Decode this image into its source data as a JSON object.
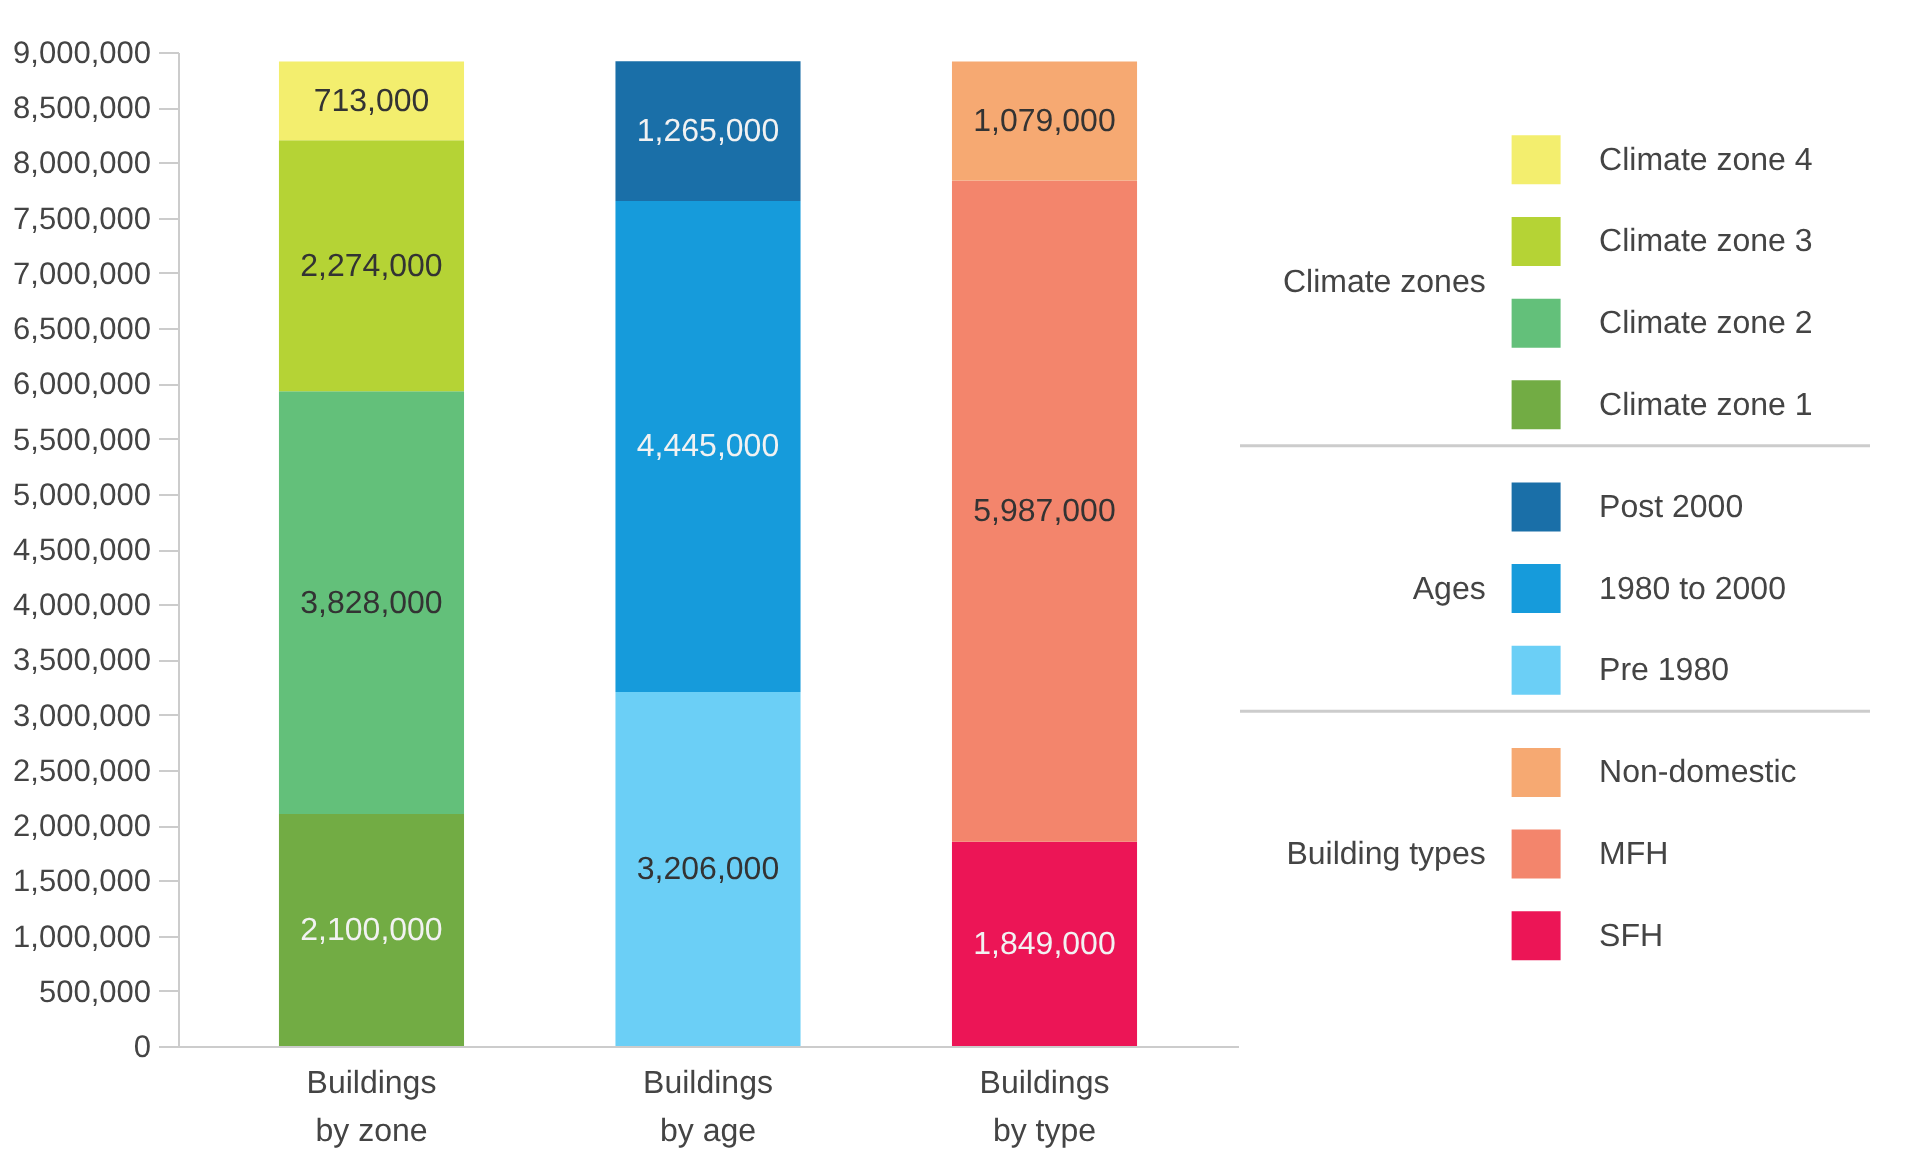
{
  "chart_data": {
    "type": "bar",
    "stacked": true,
    "data_labels": true,
    "grid": false,
    "legend": "right",
    "categories": [
      "Buildings by zone",
      "Buildings by age",
      "Buildings by type"
    ],
    "annotations": [
      "Climate zones",
      "Ages",
      "Building types"
    ],
    "ylim": [
      0,
      9000000
    ],
    "yticks": [
      {
        "value": 0,
        "label": "0"
      },
      {
        "value": 500000,
        "label": "500,000"
      },
      {
        "value": 1000000,
        "label": "1,000,000"
      },
      {
        "value": 1500000,
        "label": "1,500,000"
      },
      {
        "value": 2000000,
        "label": "2,000,000"
      },
      {
        "value": 2500000,
        "label": "2,500,000"
      },
      {
        "value": 3000000,
        "label": "3,000,000"
      },
      {
        "value": 3500000,
        "label": "3,500,000"
      },
      {
        "value": 4000000,
        "label": "4,000,000"
      },
      {
        "value": 4500000,
        "label": "4,500,000"
      },
      {
        "value": 5000000,
        "label": "5,000,000"
      },
      {
        "value": 5500000,
        "label": "5,500,000"
      },
      {
        "value": 6000000,
        "label": "6,000,000"
      },
      {
        "value": 6500000,
        "label": "6,500,000"
      },
      {
        "value": 7000000,
        "label": "7,000,000"
      },
      {
        "value": 7500000,
        "label": "7,500,000"
      },
      {
        "value": 8000000,
        "label": "8,000,000"
      },
      {
        "value": 8500000,
        "label": "8,500,000"
      },
      {
        "value": 9000000,
        "label": "9,000,000"
      }
    ],
    "series": [
      {
        "name": "Climate zone 1",
        "color": "#72ac44",
        "values": [
          2100000,
          null,
          null
        ],
        "value_labels": [
          "2,100,000",
          null,
          null
        ]
      },
      {
        "name": "Climate zone 2",
        "color": "#63c07a",
        "values": [
          3828000,
          null,
          null
        ],
        "value_labels": [
          "3,828,000",
          null,
          null
        ]
      },
      {
        "name": "Climate zone 3",
        "color": "#b5d335",
        "values": [
          2274000,
          null,
          null
        ],
        "value_labels": [
          "2,274,000",
          null,
          null
        ]
      },
      {
        "name": "Climate zone 4",
        "color": "#f3ee6e",
        "values": [
          713000,
          null,
          null
        ],
        "value_labels": [
          "713,000",
          null,
          null
        ]
      },
      {
        "name": "Pre 1980",
        "color": "#6bcff6",
        "values": [
          null,
          3206000,
          null
        ],
        "value_labels": [
          null,
          "3,206,000",
          null
        ]
      },
      {
        "name": "1980 to 2000",
        "color": "#169bdb",
        "values": [
          null,
          4445000,
          null
        ],
        "value_labels": [
          null,
          "4,445,000",
          null
        ]
      },
      {
        "name": "Post 2000",
        "color": "#1a6fa8",
        "values": [
          null,
          1265000,
          null
        ],
        "value_labels": [
          null,
          "1,265,000",
          null
        ]
      },
      {
        "name": "SFH",
        "color": "#ec1556",
        "values": [
          null,
          null,
          1849000
        ],
        "value_labels": [
          null,
          null,
          "1,849,000"
        ]
      },
      {
        "name": "MFH",
        "color": "#f3856c",
        "values": [
          null,
          null,
          5987000
        ],
        "value_labels": [
          null,
          null,
          "5,987,000"
        ]
      },
      {
        "name": "Non-domestic",
        "color": "#f6a972",
        "values": [
          null,
          null,
          1079000
        ],
        "value_labels": [
          null,
          null,
          "1,079,000"
        ]
      }
    ]
  }
}
